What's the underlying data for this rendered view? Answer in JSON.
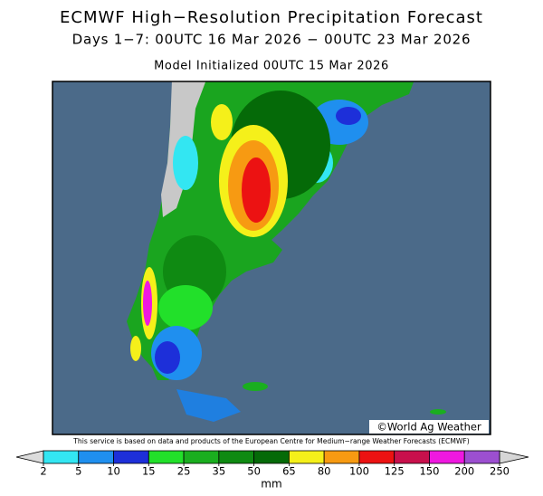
{
  "header": {
    "title": "ECMWF High−Resolution Precipitation Forecast",
    "subtitle": "Days 1−7: 00UTC 16 Mar 2026 − 00UTC 23 Mar 2026",
    "initialized": "Model Initialized 00UTC 15 Mar 2026"
  },
  "map": {
    "credit": "©World Ag Weather"
  },
  "footer": {
    "note": "This service is based on data and products of the European Centre for Medium−range Weather Forecasts (ECMWF)"
  },
  "colorbar": {
    "ticks": [
      2,
      5,
      10,
      15,
      25,
      35,
      50,
      65,
      80,
      100,
      125,
      150,
      200,
      250
    ],
    "colors": [
      "#33e6f2",
      "#1f8fef",
      "#1d2fd9",
      "#22e02a",
      "#1aae1f",
      "#0f8a12",
      "#056a08",
      "#f5f01a",
      "#f79a12",
      "#ec1212",
      "#c8104c",
      "#ef18e0",
      "#9c4fd0"
    ],
    "under_color": "#dcdcdc",
    "over_color": "#d6d6d6",
    "unit": "mm"
  }
}
